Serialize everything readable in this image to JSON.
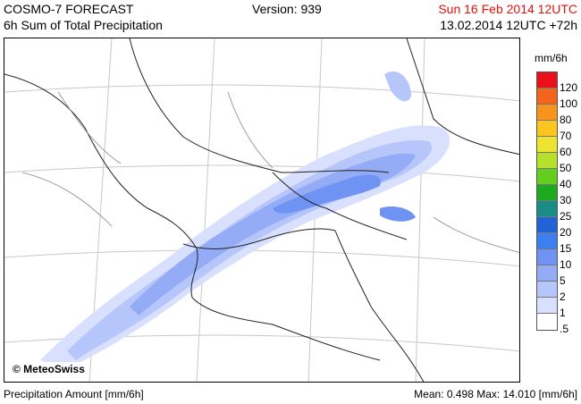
{
  "header": {
    "title": "COSMO-7 FORECAST",
    "subtitle": "6h Sum of Total Precipitation",
    "version": "Version: 939",
    "valid_time": "Sun 16 Feb 2014 12UTC",
    "init_time": "13.02.2014 12UTC +72h"
  },
  "copyright": "© MeteoSwiss",
  "legend": {
    "unit": "mm/6h",
    "levels": [
      {
        "label": "120",
        "color": "#e8111a"
      },
      {
        "label": "100",
        "color": "#f4641b"
      },
      {
        "label": "80",
        "color": "#f7931e"
      },
      {
        "label": "70",
        "color": "#fbc41f"
      },
      {
        "label": "60",
        "color": "#ede331"
      },
      {
        "label": "50",
        "color": "#b6e02a"
      },
      {
        "label": "40",
        "color": "#63cd20"
      },
      {
        "label": "30",
        "color": "#1eaa1e"
      },
      {
        "label": "25",
        "color": "#1a8c86"
      },
      {
        "label": "20",
        "color": "#1f63d6"
      },
      {
        "label": "15",
        "color": "#3d7ff0"
      },
      {
        "label": "10",
        "color": "#6f93f3"
      },
      {
        "label": "5",
        "color": "#94abf6"
      },
      {
        "label": "2",
        "color": "#b6c6fb"
      },
      {
        "label": "1",
        "color": "#d8e0fd"
      },
      {
        "label": ".5",
        "color": "#ffffff"
      }
    ]
  },
  "footer": {
    "left": "Precipitation Amount [mm/6h]",
    "mean_label": "Mean:",
    "mean_value": "0.498",
    "max_label": "Max:",
    "max_value": "14.010",
    "unit": "[mm/6h]"
  }
}
